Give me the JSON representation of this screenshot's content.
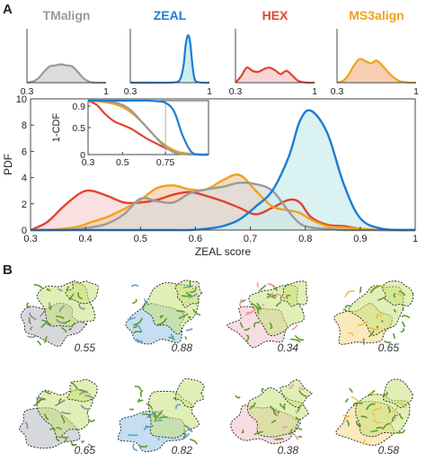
{
  "figure": {
    "panel_a_letter": "A",
    "panel_b_letter": "B",
    "colors": {
      "TMalign": "#9a9a9a",
      "ZEAL": "#1f7bd4",
      "HEX": "#e2432a",
      "MS3align": "#f0a21a",
      "ZEAL_fill": "#cdeeee",
      "HEX_fill": "#f8d6d6",
      "MS3align_fill": "#f6cfb2",
      "TMalign_fill": "#dcdcdc"
    }
  },
  "chart_data": [
    {
      "type": "area",
      "panel": "A-main",
      "xlabel": "ZEAL score",
      "ylabel": "PDF",
      "xlim": [
        0.3,
        1
      ],
      "ylim": [
        0,
        10
      ],
      "xticks": [
        "0.3",
        "0.4",
        "0.5",
        "0.6",
        "0.7",
        "0.8",
        "0.9",
        "1"
      ],
      "yticks": [
        "0",
        "2",
        "4",
        "6",
        "8",
        "10"
      ],
      "x": [
        0.3,
        0.33,
        0.36,
        0.39,
        0.41,
        0.44,
        0.47,
        0.5,
        0.53,
        0.56,
        0.59,
        0.62,
        0.65,
        0.68,
        0.71,
        0.74,
        0.77,
        0.79,
        0.81,
        0.84,
        0.87,
        0.9,
        0.94,
        1.0
      ],
      "series": [
        {
          "name": "HEX",
          "values": [
            0.0,
            0.6,
            1.8,
            2.8,
            3.0,
            2.6,
            2.1,
            2.1,
            2.3,
            2.7,
            2.9,
            2.6,
            2.2,
            1.7,
            1.2,
            1.7,
            2.3,
            2.1,
            1.0,
            0.4,
            0.3,
            0.1,
            0.0,
            0.0
          ]
        },
        {
          "name": "MS3align",
          "values": [
            0.0,
            0.0,
            0.1,
            0.3,
            0.6,
            1.0,
            1.6,
            2.3,
            3.2,
            3.4,
            3.1,
            3.1,
            3.8,
            4.2,
            3.0,
            1.8,
            1.5,
            1.3,
            0.8,
            0.3,
            0.2,
            0.1,
            0.0,
            0.0
          ]
        },
        {
          "name": "TMalign",
          "values": [
            0.0,
            0.0,
            0.0,
            0.1,
            0.2,
            0.5,
            1.2,
            2.4,
            2.2,
            2.1,
            2.8,
            3.1,
            3.3,
            3.6,
            3.5,
            3.0,
            1.4,
            0.5,
            0.2,
            0.1,
            0.0,
            0.0,
            0.0,
            0.0
          ]
        },
        {
          "name": "ZEAL",
          "values": [
            0.0,
            0.0,
            0.0,
            0.0,
            0.0,
            0.0,
            0.0,
            0.0,
            0.0,
            0.0,
            0.0,
            0.1,
            0.3,
            0.8,
            1.8,
            3.0,
            5.6,
            8.3,
            9.1,
            7.4,
            3.5,
            0.9,
            0.1,
            0.0
          ]
        }
      ]
    },
    {
      "type": "line",
      "panel": "A-inset",
      "ylabel": "1-CDF",
      "xlim": [
        0.3,
        1
      ],
      "ylim": [
        0,
        1
      ],
      "xticks": [
        "0.3",
        "0.5",
        "0.75"
      ],
      "yticks": [
        "0",
        "0.5",
        "0.9"
      ],
      "x": [
        0.3,
        0.35,
        0.4,
        0.45,
        0.5,
        0.55,
        0.6,
        0.65,
        0.7,
        0.75,
        0.8,
        0.85,
        0.9,
        0.95,
        1.0
      ],
      "series": [
        {
          "name": "HEX",
          "values": [
            1.0,
            0.92,
            0.75,
            0.62,
            0.55,
            0.48,
            0.38,
            0.28,
            0.2,
            0.12,
            0.06,
            0.03,
            0.01,
            0.0,
            0.0
          ]
        },
        {
          "name": "MS3align",
          "values": [
            1.0,
            0.99,
            0.97,
            0.94,
            0.88,
            0.78,
            0.64,
            0.48,
            0.3,
            0.17,
            0.08,
            0.03,
            0.01,
            0.0,
            0.0
          ]
        },
        {
          "name": "TMalign",
          "values": [
            1.0,
            1.0,
            0.99,
            0.97,
            0.92,
            0.82,
            0.65,
            0.47,
            0.3,
            0.14,
            0.04,
            0.01,
            0.0,
            0.0,
            0.0
          ]
        },
        {
          "name": "ZEAL",
          "values": [
            1.0,
            1.0,
            1.0,
            1.0,
            1.0,
            1.0,
            1.0,
            1.0,
            0.99,
            0.96,
            0.8,
            0.35,
            0.05,
            0.0,
            0.0
          ]
        }
      ]
    },
    {
      "type": "area",
      "panel": "A-top-TMalign",
      "title": "TMalign",
      "xticks": [
        "0.3",
        "1"
      ],
      "xlim": [
        0.3,
        1
      ],
      "ylim": [
        0,
        10
      ],
      "x": [
        0.3,
        0.35,
        0.4,
        0.45,
        0.5,
        0.55,
        0.6,
        0.65,
        0.7,
        0.75,
        0.8,
        0.85,
        0.9,
        0.95,
        1.0
      ],
      "values": [
        0.0,
        0.2,
        0.8,
        2.0,
        3.0,
        3.2,
        3.4,
        3.2,
        3.0,
        2.0,
        0.8,
        0.2,
        0.0,
        0.0,
        0.0
      ]
    },
    {
      "type": "area",
      "panel": "A-top-ZEAL",
      "title": "ZEAL",
      "xticks": [
        "0.3",
        "1"
      ],
      "xlim": [
        0.3,
        1
      ],
      "ylim": [
        0,
        10
      ],
      "x": [
        0.3,
        0.4,
        0.5,
        0.6,
        0.7,
        0.74,
        0.77,
        0.79,
        0.81,
        0.83,
        0.85,
        0.87,
        0.9,
        0.95,
        1.0
      ],
      "values": [
        0.0,
        0.0,
        0.0,
        0.0,
        0.1,
        0.6,
        3.0,
        7.0,
        8.8,
        7.4,
        3.2,
        0.6,
        0.1,
        0.0,
        0.0
      ]
    },
    {
      "type": "area",
      "panel": "A-top-HEX",
      "title": "HEX",
      "xticks": [
        "0.3",
        "1"
      ],
      "xlim": [
        0.3,
        1
      ],
      "ylim": [
        0,
        10
      ],
      "x": [
        0.3,
        0.35,
        0.4,
        0.45,
        0.5,
        0.55,
        0.6,
        0.65,
        0.7,
        0.75,
        0.8,
        0.85,
        0.9,
        0.95,
        1.0
      ],
      "values": [
        0.0,
        1.2,
        2.8,
        2.2,
        2.0,
        2.5,
        2.8,
        2.3,
        1.6,
        2.2,
        1.4,
        0.4,
        0.1,
        0.0,
        0.0
      ]
    },
    {
      "type": "area",
      "panel": "A-top-MS3align",
      "title": "MS3align",
      "xticks": [
        "0.3",
        "1"
      ],
      "xlim": [
        0.3,
        1
      ],
      "ylim": [
        0,
        10
      ],
      "x": [
        0.3,
        0.35,
        0.4,
        0.45,
        0.5,
        0.55,
        0.6,
        0.65,
        0.7,
        0.75,
        0.8,
        0.85,
        0.9,
        0.95,
        1.0
      ],
      "values": [
        0.0,
        0.3,
        1.4,
        3.2,
        4.4,
        4.0,
        3.6,
        4.1,
        3.2,
        2.0,
        1.0,
        0.3,
        0.1,
        0.0,
        0.0
      ]
    }
  ],
  "panel_b": {
    "scores": [
      "0.55",
      "0.88",
      "0.34",
      "0.65",
      "0.65",
      "0.82",
      "0.38",
      "0.58"
    ],
    "thumbnails": [
      {
        "method": "TMalign",
        "overlay": "#8a8f9a"
      },
      {
        "method": "ZEAL",
        "overlay": "#5aa0d8"
      },
      {
        "method": "HEX",
        "overlay": "#e89aa8"
      },
      {
        "method": "MS3align",
        "overlay": "#f0c040"
      },
      {
        "method": "TMalign",
        "overlay": "#8a8f9a"
      },
      {
        "method": "ZEAL",
        "overlay": "#5aa0d8"
      },
      {
        "method": "HEX",
        "overlay": "#e89aa8"
      },
      {
        "method": "MS3align",
        "overlay": "#f0c040"
      }
    ]
  }
}
